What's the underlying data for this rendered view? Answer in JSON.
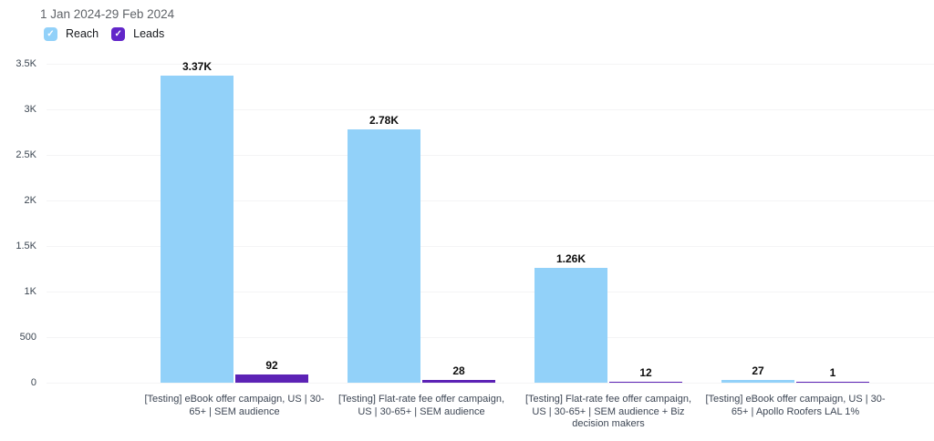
{
  "header": {
    "date_range": "1 Jan 2024-29 Feb 2024"
  },
  "legend": {
    "items": [
      {
        "label": "Reach",
        "color": "#92d1f9",
        "checked": true
      },
      {
        "label": "Leads",
        "color": "#6226c9",
        "checked": true
      }
    ]
  },
  "chart_data": {
    "type": "bar",
    "title": "",
    "xlabel": "",
    "ylabel": "",
    "ylim": [
      0,
      3500
    ],
    "grid": true,
    "legend_position": "top-left",
    "categories": [
      "[Testing] eBook offer campaign, US | 30-65+ | SEM audience",
      "[Testing] Flat-rate fee offer campaign, US | 30-65+ | SEM audience",
      "[Testing] Flat-rate fee offer campaign, US | 30-65+ | SEM audience + Biz decision makers",
      "[Testing] eBook offer campaign, US | 30-65+ | Apollo Roofers LAL 1%"
    ],
    "series": [
      {
        "name": "Reach",
        "color": "#92d1f9",
        "values": [
          3370,
          2780,
          1260,
          27
        ],
        "labels": [
          "3.37K",
          "2.78K",
          "1.26K",
          "27"
        ]
      },
      {
        "name": "Leads",
        "color": "#5c22b5",
        "values": [
          92,
          28,
          12,
          1
        ],
        "labels": [
          "92",
          "28",
          "12",
          "1"
        ]
      }
    ],
    "y_ticks": [
      {
        "value": 0,
        "label": "0"
      },
      {
        "value": 500,
        "label": "500"
      },
      {
        "value": 1000,
        "label": "1K"
      },
      {
        "value": 1500,
        "label": "1.5K"
      },
      {
        "value": 2000,
        "label": "2K"
      },
      {
        "value": 2500,
        "label": "2.5K"
      },
      {
        "value": 3000,
        "label": "3K"
      },
      {
        "value": 3500,
        "label": "3.5K"
      }
    ]
  }
}
